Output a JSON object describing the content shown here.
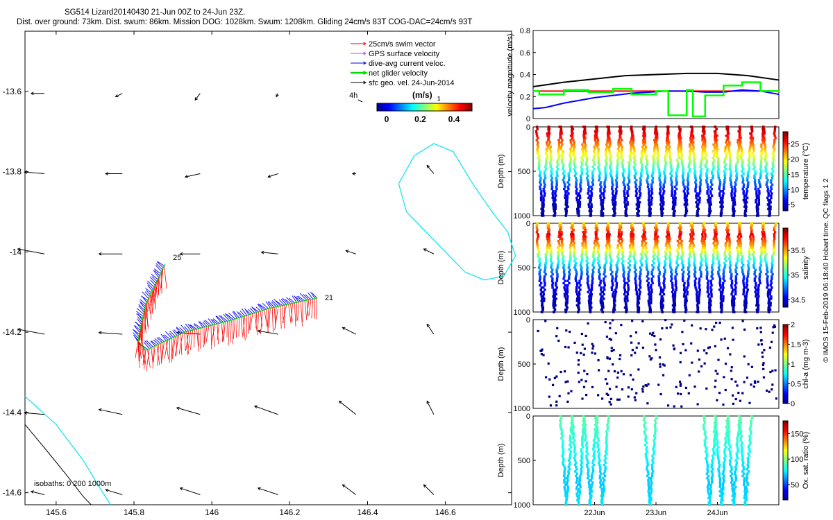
{
  "header": {
    "title_line1": "SG514 Lizard20140430 21-Jun 00Z to 24-Jun 23Z.",
    "title_line2": "Dist. over ground: 73km. Dist. swum: 86km. Mission DOG: 1028km. Swum: 1208km. Gliding 24cm/s 83T COG-DAC=24cm/s 93T"
  },
  "side_note": "© IMOS 15-Feb-2019 06:18:40 Hobart time. QC flags 1  2",
  "colors": {
    "swim": "#ff0000",
    "gps": "#cc44cc",
    "dac": "#0000ff",
    "net": "#00dd00",
    "geo": "#000000",
    "isobath0": "#00e5ee",
    "isobath_deep": "#000000",
    "vel_black": "#000000",
    "vel_red": "#ff0000",
    "vel_blue": "#0000ff",
    "vel_green": "#00ff00",
    "chl_marker": "#000080"
  },
  "chart_data": [
    {
      "type": "scatter",
      "id": "map",
      "xticks": [
        "145.6",
        "145.8",
        "146",
        "146.2",
        "146.4",
        "146.6"
      ],
      "yticks": [
        "-13.6",
        "-13.8",
        "-14",
        "-14.2",
        "-14.4",
        "-14.6"
      ],
      "xlim": [
        145.52,
        146.77
      ],
      "ylim": [
        -14.63,
        -13.45
      ],
      "legend": [
        {
          "label": "25cm/s swim vector",
          "color": "#ff0000"
        },
        {
          "label": "GPS surface velocity",
          "color": "#cc44cc"
        },
        {
          "label": "dive-avg current veloc.",
          "color": "#0000ff"
        },
        {
          "label": "net glider velocity",
          "color": "#00dd00"
        },
        {
          "label": "sfc geo. vel. 24-Jun-2014",
          "color": "#000000"
        }
      ],
      "legend_extra": "4h",
      "colorbar_title": "(m/s)",
      "colorbar_subscript": "1",
      "colorbar_ticks": [
        "0",
        "0.2",
        "0.4"
      ],
      "isobaths_label": "isobaths: 0   200  1000m",
      "track_labels": [
        {
          "text": "25",
          "lon": 145.9,
          "lat": -14.02
        },
        {
          "text": "21",
          "lon": 146.29,
          "lat": -14.12
        }
      ],
      "track": [
        {
          "lon": 146.27,
          "lat": -14.115
        },
        {
          "lon": 146.15,
          "lat": -14.14
        },
        {
          "lon": 146.05,
          "lat": -14.17
        },
        {
          "lon": 145.93,
          "lat": -14.2
        },
        {
          "lon": 145.83,
          "lat": -14.245
        },
        {
          "lon": 145.81,
          "lat": -14.22
        },
        {
          "lon": 145.83,
          "lat": -14.13
        },
        {
          "lon": 145.88,
          "lat": -14.03
        }
      ],
      "geo_vectors": [
        {
          "lon": 145.57,
          "lat": -13.605,
          "u": -0.04,
          "v": 0.0
        },
        {
          "lon": 145.77,
          "lat": -13.605,
          "u": -0.02,
          "v": -0.01
        },
        {
          "lon": 145.97,
          "lat": -13.605,
          "u": -0.015,
          "v": -0.02
        },
        {
          "lon": 146.17,
          "lat": -13.605,
          "u": -0.005,
          "v": -0.01
        },
        {
          "lon": 145.57,
          "lat": -13.805,
          "u": -0.06,
          "v": 0.005
        },
        {
          "lon": 145.77,
          "lat": -13.805,
          "u": -0.05,
          "v": 0.0
        },
        {
          "lon": 145.97,
          "lat": -13.805,
          "u": -0.045,
          "v": -0.01
        },
        {
          "lon": 146.17,
          "lat": -13.805,
          "u": -0.03,
          "v": -0.01
        },
        {
          "lon": 146.37,
          "lat": -13.805,
          "u": -0.01,
          "v": 0.0
        },
        {
          "lon": 146.57,
          "lat": -13.805,
          "u": -0.02,
          "v": 0.025
        },
        {
          "lon": 145.57,
          "lat": -14.005,
          "u": -0.08,
          "v": 0.015
        },
        {
          "lon": 145.77,
          "lat": -14.005,
          "u": -0.07,
          "v": 0.0
        },
        {
          "lon": 145.97,
          "lat": -14.005,
          "u": -0.06,
          "v": 0.0
        },
        {
          "lon": 146.17,
          "lat": -14.005,
          "u": -0.05,
          "v": 0.005
        },
        {
          "lon": 146.37,
          "lat": -14.005,
          "u": -0.03,
          "v": 0.01
        },
        {
          "lon": 146.57,
          "lat": -14.005,
          "u": -0.03,
          "v": 0.015
        },
        {
          "lon": 145.57,
          "lat": -14.205,
          "u": -0.08,
          "v": 0.015
        },
        {
          "lon": 145.77,
          "lat": -14.205,
          "u": -0.07,
          "v": 0.005
        },
        {
          "lon": 145.97,
          "lat": -14.205,
          "u": -0.07,
          "v": 0.005
        },
        {
          "lon": 146.17,
          "lat": -14.205,
          "u": -0.06,
          "v": 0.01
        },
        {
          "lon": 146.37,
          "lat": -14.205,
          "u": -0.04,
          "v": 0.02
        },
        {
          "lon": 146.57,
          "lat": -14.205,
          "u": -0.02,
          "v": 0.03
        },
        {
          "lon": 145.57,
          "lat": -14.405,
          "u": -0.06,
          "v": 0.005
        },
        {
          "lon": 145.77,
          "lat": -14.405,
          "u": -0.07,
          "v": 0.015
        },
        {
          "lon": 145.97,
          "lat": -14.405,
          "u": -0.07,
          "v": 0.02
        },
        {
          "lon": 146.17,
          "lat": -14.405,
          "u": -0.07,
          "v": 0.025
        },
        {
          "lon": 146.37,
          "lat": -14.405,
          "u": -0.05,
          "v": 0.04
        },
        {
          "lon": 146.57,
          "lat": -14.405,
          "u": -0.02,
          "v": 0.04
        },
        {
          "lon": 145.57,
          "lat": -14.605,
          "u": -0.04,
          "v": 0.01
        },
        {
          "lon": 145.77,
          "lat": -14.605,
          "u": -0.05,
          "v": 0.015
        },
        {
          "lon": 145.97,
          "lat": -14.605,
          "u": -0.06,
          "v": 0.02
        },
        {
          "lon": 146.17,
          "lat": -14.605,
          "u": -0.06,
          "v": 0.02
        },
        {
          "lon": 146.37,
          "lat": -14.605,
          "u": -0.04,
          "v": 0.03
        },
        {
          "lon": 146.57,
          "lat": -14.605,
          "u": -0.03,
          "v": 0.03
        }
      ]
    },
    {
      "type": "line",
      "id": "velocity",
      "ylabel": "velocity magnitude (m/s)",
      "ylim": [
        0,
        0.8
      ],
      "yticks": [
        "0",
        "0.2",
        "0.4",
        "0.6",
        "0.8"
      ],
      "xlim": [
        21.0,
        25.0
      ],
      "series": [
        {
          "color": "#000000",
          "x": [
            21.0,
            21.5,
            22.0,
            22.5,
            23.0,
            23.5,
            24.0,
            24.5,
            25.0
          ],
          "values": [
            0.29,
            0.33,
            0.36,
            0.39,
            0.4,
            0.41,
            0.41,
            0.39,
            0.35
          ]
        },
        {
          "color": "#ff0000",
          "x": [
            21.0,
            25.0
          ],
          "values": [
            0.25,
            0.25
          ]
        },
        {
          "color": "#0000ff",
          "x": [
            21.0,
            21.2,
            21.5,
            21.8,
            22.0,
            22.3,
            22.6,
            22.9,
            23.2,
            23.5,
            23.8,
            24.1,
            24.4,
            24.7,
            25.0
          ],
          "values": [
            0.09,
            0.1,
            0.14,
            0.17,
            0.19,
            0.21,
            0.23,
            0.24,
            0.25,
            0.25,
            0.24,
            0.24,
            0.26,
            0.25,
            0.22
          ]
        },
        {
          "color": "#00ff00",
          "x": [
            21.0,
            21.1,
            21.1,
            21.5,
            21.5,
            21.9,
            21.9,
            22.3,
            22.3,
            22.6,
            22.6,
            23.0,
            23.0,
            23.2,
            23.2,
            23.5,
            23.5,
            23.6,
            23.6,
            23.8,
            23.8,
            24.1,
            24.1,
            24.4,
            24.4,
            24.7,
            24.7,
            25.0
          ],
          "values": [
            0.25,
            0.25,
            0.22,
            0.22,
            0.26,
            0.26,
            0.24,
            0.24,
            0.27,
            0.27,
            0.22,
            0.22,
            0.25,
            0.25,
            0.03,
            0.03,
            0.26,
            0.26,
            0.02,
            0.02,
            0.21,
            0.21,
            0.3,
            0.3,
            0.33,
            0.33,
            0.25,
            0.25
          ]
        }
      ]
    },
    {
      "type": "scatter",
      "id": "temperature",
      "ylabel": "Depth (m)",
      "yticks": [
        "0",
        "500",
        "1000"
      ],
      "ylim": [
        1000,
        0
      ],
      "xlim": [
        21.0,
        25.0
      ],
      "colorbar_label": "temperature (°C)",
      "colorbar_ticks": [
        "5",
        "10",
        "15",
        "20",
        "25"
      ],
      "colorbar_range": [
        3,
        29
      ],
      "profiles": 20,
      "values": [
        28,
        25,
        21,
        17,
        13,
        9,
        6,
        4.5,
        4
      ]
    },
    {
      "type": "scatter",
      "id": "salinity",
      "ylabel": "Depth (m)",
      "yticks": [
        "0",
        "500",
        "1000"
      ],
      "ylim": [
        1000,
        0
      ],
      "xlim": [
        21.0,
        25.0
      ],
      "colorbar_label": "salinity",
      "colorbar_ticks": [
        "34.5",
        "35",
        "35.5"
      ],
      "colorbar_range": [
        34.35,
        35.95
      ],
      "profiles": 20,
      "values": [
        35.4,
        35.8,
        35.5,
        35.1,
        34.8,
        34.6,
        34.5,
        34.45,
        34.4
      ]
    },
    {
      "type": "scatter",
      "id": "chla",
      "ylabel": "Depth (m)",
      "yticks": [
        "0",
        "500",
        "1000"
      ],
      "ylim": [
        1000,
        0
      ],
      "xlim": [
        21.0,
        25.0
      ],
      "colorbar_label": "chl-a (mg m-3)",
      "colorbar_ticks": [
        "0",
        "0.5",
        "1",
        "1.5",
        "2"
      ],
      "colorbar_range": [
        0,
        2
      ],
      "profiles": 20
    },
    {
      "type": "scatter",
      "id": "oxygen",
      "ylabel": "Depth (m)",
      "yticks": [
        "0",
        "500",
        "1000"
      ],
      "ylim": [
        1000,
        0
      ],
      "xlim": [
        21.0,
        25.0
      ],
      "xticks": [
        "22Jun",
        "23Jun",
        "24Jun"
      ],
      "colorbar_label": "Ox. sat. ratio (%)",
      "colorbar_ticks": [
        "50",
        "100",
        "150"
      ],
      "colorbar_range": [
        20,
        175
      ],
      "profiles_shown": [
        2,
        3,
        4,
        5,
        9,
        14,
        15,
        16,
        17
      ],
      "values": [
        92,
        88,
        84,
        80,
        76,
        72,
        70,
        72,
        75
      ]
    }
  ]
}
